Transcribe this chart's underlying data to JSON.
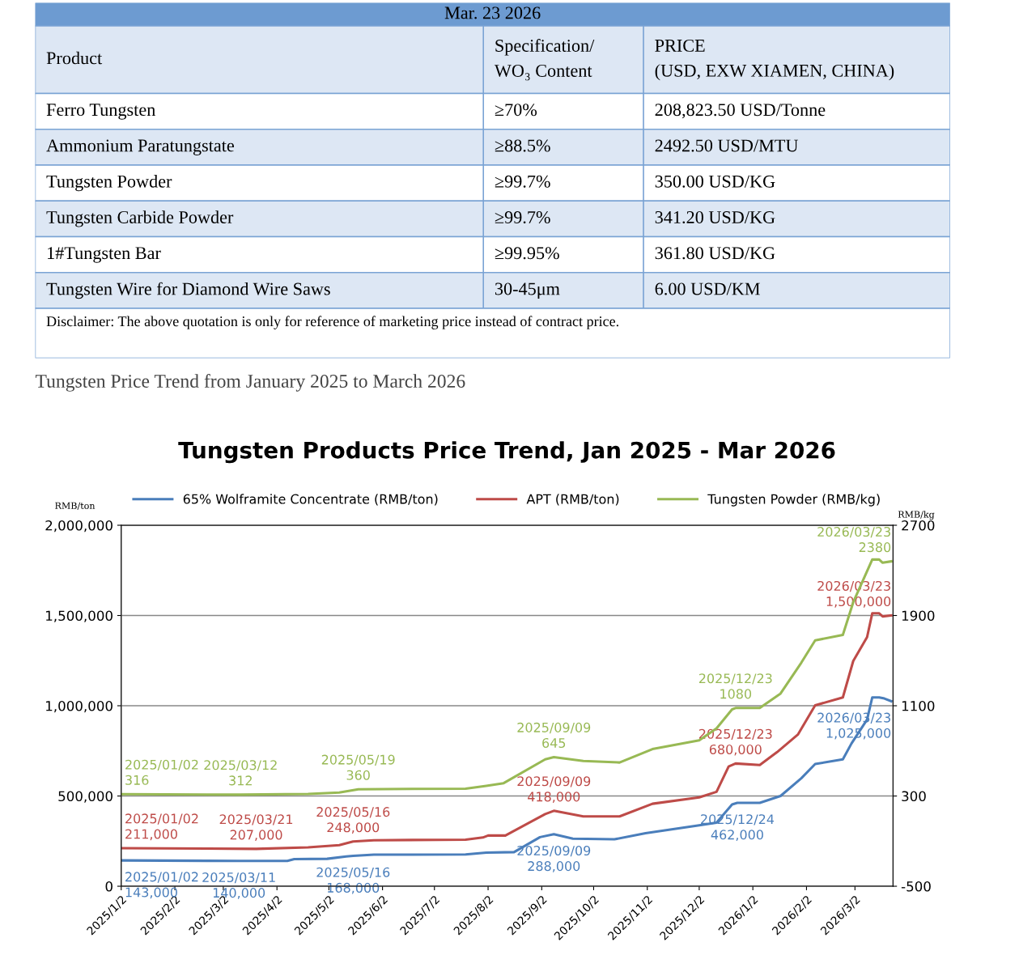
{
  "chart_data": [
    {
      "type": "other",
      "title": "Mar. 23 2026",
      "annotations": [
        "Product",
        "Specification/\nWO₃ Content",
        "PRICE\n(USD, EXW XIAMEN, CHINA)",
        "Ferro Tungsten",
        "≥70%",
        "208,823.50 USD/Tonne",
        "Ammonium Paratungstate",
        "≥88.5%",
        "2492.50 USD/MTU",
        "Tungsten Powder",
        "≥99.7%",
        "350.00 USD/KG",
        "Tungsten Carbide Powder",
        "≥99.7%",
        "341.20 USD/KG",
        "1#Tungsten Bar",
        "≥99.95%",
        "361.80 USD/KG",
        "Tungsten Wire for Diamond Wire Saws",
        "30-45μm",
        "6.00 USD/KM",
        "Disclaimer: The above quotation is only for reference of marketing price instead of contract price."
      ]
    },
    {
      "type": "line",
      "title": "Tungsten Products Price Trend, Jan 2025 - Mar 2026",
      "subtitle": "Tungsten Price Trend from January 2025 to March 2026",
      "ylabel": "RMB/ton",
      "y2label": "RMB/kg",
      "xlim": [
        "2025-01-02",
        "2026-03-24"
      ],
      "xticks": [
        {
          "value": "2025-01-02",
          "label": "2025/1/2"
        },
        {
          "value": "2025-02-02",
          "label": "2025/2/2"
        },
        {
          "value": "2025-03-02",
          "label": "2025/3/2"
        },
        {
          "value": "2025-04-02",
          "label": "2025/4/2"
        },
        {
          "value": "2025-05-02",
          "label": "2025/5/2"
        },
        {
          "value": "2025-06-02",
          "label": "2025/6/2"
        },
        {
          "value": "2025-07-02",
          "label": "2025/7/2"
        },
        {
          "value": "2025-08-02",
          "label": "2025/8/2"
        },
        {
          "value": "2025-09-02",
          "label": "2025/9/2"
        },
        {
          "value": "2025-10-02",
          "label": "2025/10/2"
        },
        {
          "value": "2025-11-02",
          "label": "2025/11/2"
        },
        {
          "value": "2025-12-02",
          "label": "2025/12/2"
        },
        {
          "value": "2026-01-02",
          "label": "2026/1/2"
        },
        {
          "value": "2026-02-02",
          "label": "2026/2/2"
        },
        {
          "value": "2026-03-02",
          "label": "2026/3/2"
        }
      ],
      "ylim": [
        0,
        2000000
      ],
      "yticks": [
        {
          "value": 0,
          "label": "0"
        },
        {
          "value": 500000,
          "label": "500,000"
        },
        {
          "value": 1000000,
          "label": "1,000,000"
        },
        {
          "value": 1500000,
          "label": "1,500,000"
        },
        {
          "value": 2000000,
          "label": "2,000,000"
        }
      ],
      "y2lim": [
        -500,
        2700
      ],
      "y2ticks": [
        -500,
        300,
        1100,
        1900,
        2700
      ],
      "grid": "y",
      "legend": "top",
      "marker": "none",
      "line_style": "solid",
      "series": [
        {
          "name": "65% Wolframite Concentrate (RMB/ton)",
          "color": "#4a7ebb",
          "x": [
            "2025-01-02",
            "2025-03-11",
            "2025-04-08",
            "2025-04-12",
            "2025-05-01",
            "2025-05-12",
            "2025-05-16",
            "2025-05-28",
            "2025-07-20",
            "2025-08-01",
            "2025-08-17",
            "2025-09-01",
            "2025-09-09",
            "2025-09-20",
            "2025-10-14",
            "2025-11-01",
            "2025-12-02",
            "2025-12-12",
            "2025-12-21",
            "2025-12-24",
            "2026-01-06",
            "2026-01-18",
            "2026-01-30",
            "2026-02-07",
            "2026-02-23",
            "2026-02-28",
            "2026-03-09",
            "2026-03-12",
            "2026-03-16",
            "2026-03-19",
            "2026-03-23"
          ],
          "values": [
            143000,
            140000,
            140000,
            150000,
            152000,
            165000,
            168000,
            175000,
            176000,
            186000,
            189000,
            272000,
            288000,
            264000,
            260000,
            294000,
            338000,
            352000,
            453000,
            462000,
            462000,
            500000,
            598000,
            677000,
            703000,
            791000,
            923000,
            1046000,
            1046000,
            1040000,
            1025000
          ]
        },
        {
          "name": "APT (RMB/ton)",
          "color": "#be4b48",
          "x": [
            "2025-01-02",
            "2025-03-21",
            "2025-04-20",
            "2025-05-08",
            "2025-05-16",
            "2025-05-28",
            "2025-07-20",
            "2025-07-30",
            "2025-08-02",
            "2025-08-12",
            "2025-09-04",
            "2025-09-09",
            "2025-09-26",
            "2025-10-17",
            "2025-11-05",
            "2025-12-02",
            "2025-12-12",
            "2025-12-19",
            "2025-12-23",
            "2026-01-06",
            "2026-01-16",
            "2026-01-28",
            "2026-02-07",
            "2026-02-23",
            "2026-03-01",
            "2026-03-09",
            "2026-03-12",
            "2026-03-16",
            "2026-03-18",
            "2026-03-23"
          ],
          "values": [
            211000,
            207000,
            215000,
            228000,
            248000,
            255000,
            258000,
            270000,
            281000,
            281000,
            400000,
            418000,
            387000,
            387000,
            457000,
            492000,
            523000,
            663000,
            680000,
            672000,
            743000,
            840000,
            1002000,
            1046000,
            1248000,
            1380000,
            1512000,
            1512000,
            1495000,
            1500000
          ]
        },
        {
          "name": "Tungsten Powder (RMB/kg)",
          "color": "#98b954",
          "axis": "y2",
          "x": [
            "2025-01-02",
            "2025-03-12",
            "2025-04-20",
            "2025-05-08",
            "2025-05-19",
            "2025-07-20",
            "2025-08-01",
            "2025-08-11",
            "2025-09-04",
            "2025-09-09",
            "2025-09-26",
            "2025-10-17",
            "2025-11-05",
            "2025-12-02",
            "2025-12-12",
            "2025-12-21",
            "2025-12-23",
            "2026-01-06",
            "2026-01-18",
            "2026-01-30",
            "2026-02-07",
            "2026-02-23",
            "2026-03-01",
            "2026-03-12",
            "2026-03-16",
            "2026-03-18",
            "2026-03-23"
          ],
          "values": [
            316,
            312,
            318,
            330,
            360,
            365,
            390,
            414,
            625,
            645,
            611,
            597,
            716,
            793,
            899,
            1068,
            1080,
            1080,
            1208,
            1482,
            1679,
            1728,
            2017,
            2396,
            2396,
            2368,
            2380
          ]
        }
      ],
      "annotations": [
        {
          "text": "2025/01/02\n316",
          "x": "2025-01-02",
          "y": 510000
        },
        {
          "text": "2025/03/12\n312",
          "x": "2025-03-12",
          "y": 507500
        },
        {
          "text": "2025/05/19\n360",
          "x": "2025-05-19",
          "y": 537500
        },
        {
          "text": "2025/09/09\n645",
          "x": "2025-09-09",
          "y": 715625
        },
        {
          "text": "2025/12/23\n1080",
          "x": "2025-12-23",
          "y": 987500
        },
        {
          "text": "2026/03/23\n2380",
          "x": "2026-03-23",
          "y": 1800000
        },
        {
          "text": "2025/01/02\n211,000",
          "x": "2025-01-02",
          "y": 211000
        },
        {
          "text": "2025/03/21\n207,000",
          "x": "2025-03-21",
          "y": 207000
        },
        {
          "text": "2025/05/16\n248,000",
          "x": "2025-05-16",
          "y": 248000
        },
        {
          "text": "2025/09/09\n418,000",
          "x": "2025-09-09",
          "y": 418000
        },
        {
          "text": "2025/12/23\n680,000",
          "x": "2025-12-23",
          "y": 680000
        },
        {
          "text": "2026/03/23\n1,500,000",
          "x": "2026-03-23",
          "y": 1500000
        },
        {
          "text": "2025/01/02\n143,000",
          "x": "2025-01-02",
          "y": 143000
        },
        {
          "text": "2025/03/11\n140,000",
          "x": "2025-03-11",
          "y": 140000
        },
        {
          "text": "2025/05/16\n168,000",
          "x": "2025-05-16",
          "y": 168000
        },
        {
          "text": "2025/09/09\n288,000",
          "x": "2025-09-09",
          "y": 288000
        },
        {
          "text": "2025/12/24\n462,000",
          "x": "2025-12-24",
          "y": 462000
        },
        {
          "text": "2026/03/23\n1,025,000",
          "x": "2026-03-23",
          "y": 1025000
        }
      ]
    }
  ]
}
